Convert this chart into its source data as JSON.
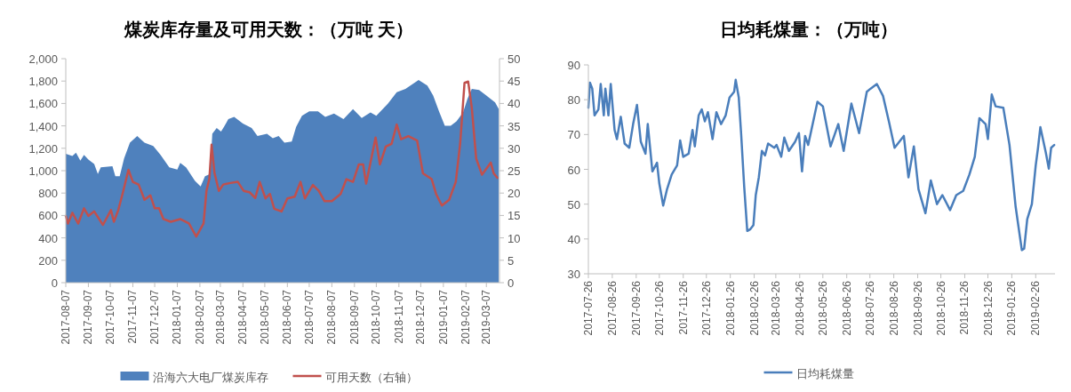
{
  "chart_data": [
    {
      "type": "area",
      "title": "煤炭库存量及可用天数：（万吨 天）",
      "legend": "bottom",
      "xlim": [
        "2017-08-07",
        "2019-03-25"
      ],
      "xticks": [
        "2017-08-07",
        "2017-09-07",
        "2017-10-07",
        "2017-11-07",
        "2017-12-07",
        "2018-01-07",
        "2018-02-07",
        "2018-03-07",
        "2018-04-07",
        "2018-05-07",
        "2018-06-07",
        "2018-07-07",
        "2018-08-07",
        "2018-09-07",
        "2018-10-07",
        "2018-11-07",
        "2018-12-07",
        "2019-01-07",
        "2019-02-07",
        "2019-03-07"
      ],
      "ylim": [
        0,
        2000
      ],
      "yticks": [
        0,
        200,
        400,
        600,
        800,
        {
          "value": 1000,
          "label": "1,000"
        },
        {
          "value": 1200,
          "label": "1,200"
        },
        {
          "value": 1400,
          "label": "1,400"
        },
        {
          "value": 1600,
          "label": "1,600"
        },
        {
          "value": 1800,
          "label": "1,800"
        },
        {
          "value": 2000,
          "label": "2,000"
        }
      ],
      "y2lim": [
        0,
        50
      ],
      "y2ticks": [
        0,
        5,
        10,
        15,
        20,
        25,
        30,
        35,
        40,
        45,
        50
      ],
      "series": [
        {
          "name": "沿海六大电厂煤炭库存",
          "color": "#4f81bd",
          "x": [
            "2017-08-07",
            "2017-08-16",
            "2017-08-21",
            "2017-08-27",
            "2017-09-01",
            "2017-09-07",
            "2017-09-15",
            "2017-09-20",
            "2017-09-24",
            "2017-10-10",
            "2017-10-14",
            "2017-10-20",
            "2017-10-26",
            "2017-11-03",
            "2017-11-13",
            "2017-11-23",
            "2017-12-05",
            "2017-12-15",
            "2017-12-27",
            "2018-01-07",
            "2018-01-11",
            "2018-01-19",
            "2018-01-31",
            "2018-02-08",
            "2018-02-14",
            "2018-02-21",
            "2018-02-24",
            "2018-03-02",
            "2018-03-08",
            "2018-03-12",
            "2018-03-18",
            "2018-03-26",
            "2018-04-07",
            "2018-04-19",
            "2018-04-27",
            "2018-05-10",
            "2018-05-18",
            "2018-05-26",
            "2018-06-03",
            "2018-06-13",
            "2018-06-19",
            "2018-06-27",
            "2018-07-07",
            "2018-07-19",
            "2018-07-29",
            "2018-08-10",
            "2018-08-23",
            "2018-09-05",
            "2018-09-17",
            "2018-09-29",
            "2018-10-07",
            "2018-10-23",
            "2018-11-04",
            "2018-11-16",
            "2018-12-04",
            "2018-12-16",
            "2018-12-24",
            "2019-01-01",
            "2019-01-09",
            "2019-01-17",
            "2019-01-25",
            "2019-02-03",
            "2019-02-09",
            "2019-02-15",
            "2019-02-25",
            "2019-03-07",
            "2019-03-19",
            "2019-03-24"
          ],
          "values": [
            1150,
            1130,
            1160,
            1090,
            1140,
            1100,
            1060,
            970,
            1030,
            1040,
            950,
            950,
            1110,
            1250,
            1310,
            1250,
            1220,
            1140,
            1030,
            1010,
            1070,
            1030,
            910,
            860,
            950,
            970,
            1330,
            1380,
            1350,
            1390,
            1460,
            1480,
            1420,
            1380,
            1310,
            1330,
            1290,
            1310,
            1250,
            1260,
            1390,
            1490,
            1530,
            1530,
            1480,
            1510,
            1460,
            1550,
            1470,
            1520,
            1490,
            1600,
            1700,
            1730,
            1810,
            1760,
            1670,
            1530,
            1400,
            1400,
            1440,
            1520,
            1640,
            1730,
            1720,
            1670,
            1610,
            1550
          ]
        },
        {
          "name": "可用天数（右轴）",
          "type": "line",
          "axis": "y2",
          "color": "#c0504d",
          "x": [
            "2017-08-07",
            "2017-08-10",
            "2017-08-16",
            "2017-08-24",
            "2017-09-01",
            "2017-09-07",
            "2017-09-15",
            "2017-09-27",
            "2017-10-08",
            "2017-10-12",
            "2017-10-18",
            "2017-10-24",
            "2017-11-01",
            "2017-11-07",
            "2017-11-15",
            "2017-11-23",
            "2017-12-01",
            "2017-12-07",
            "2017-12-13",
            "2017-12-19",
            "2017-12-29",
            "2018-01-11",
            "2018-01-23",
            "2018-02-02",
            "2018-02-12",
            "2018-02-16",
            "2018-02-20",
            "2018-02-23",
            "2018-02-27",
            "2018-03-05",
            "2018-03-11",
            "2018-03-19",
            "2018-03-31",
            "2018-04-08",
            "2018-04-16",
            "2018-04-24",
            "2018-04-30",
            "2018-05-08",
            "2018-05-14",
            "2018-05-20",
            "2018-05-30",
            "2018-06-07",
            "2018-06-17",
            "2018-06-25",
            "2018-07-01",
            "2018-07-12",
            "2018-07-20",
            "2018-07-28",
            "2018-08-07",
            "2018-08-19",
            "2018-08-27",
            "2018-09-05",
            "2018-09-13",
            "2018-09-19",
            "2018-09-23",
            "2018-09-29",
            "2018-10-06",
            "2018-10-12",
            "2018-10-20",
            "2018-10-28",
            "2018-11-04",
            "2018-11-10",
            "2018-11-20",
            "2018-12-02",
            "2018-12-10",
            "2018-12-22",
            "2018-12-28",
            "2019-01-05",
            "2019-01-15",
            "2019-01-24",
            "2019-01-30",
            "2019-02-05",
            "2019-02-10",
            "2019-02-15",
            "2019-02-21",
            "2019-03-01",
            "2019-03-13",
            "2019-03-17",
            "2019-03-22"
          ],
          "values": [
            14.9,
            13.2,
            15.6,
            13.2,
            16.6,
            14.9,
            15.9,
            12.9,
            16.2,
            13.6,
            16.2,
            19.9,
            25.2,
            22.5,
            21.9,
            18.5,
            19.5,
            16.6,
            16.6,
            14.2,
            13.6,
            14.2,
            13.2,
            10.3,
            13.2,
            20.5,
            23.2,
            30.8,
            24.5,
            20.5,
            21.9,
            22.2,
            22.5,
            20.5,
            20.2,
            18.9,
            22.5,
            18.8,
            19.8,
            16.5,
            15.9,
            18.8,
            19.2,
            22.5,
            18.8,
            21.8,
            20.5,
            18.2,
            18.2,
            19.8,
            23.1,
            22.5,
            26.4,
            26.4,
            22.1,
            26.8,
            32.4,
            26.4,
            30.4,
            31.0,
            35.3,
            32.0,
            32.7,
            31.7,
            24.4,
            23.1,
            19.8,
            17.2,
            18.5,
            22.5,
            31.0,
            44.6,
            44.9,
            39.0,
            27.7,
            24.1,
            26.8,
            24.4,
            23.4
          ]
        }
      ]
    },
    {
      "type": "line",
      "title": "日均耗煤量：（万吨）",
      "legend": "bottom",
      "xlim": [
        "2017-07-26",
        "2019-03-23"
      ],
      "xticks": [
        "2017-07-26",
        "2017-08-26",
        "2017-09-26",
        "2017-10-26",
        "2017-11-26",
        "2017-12-26",
        "2018-01-26",
        "2018-02-26",
        "2018-03-26",
        "2018-04-26",
        "2018-05-26",
        "2018-06-26",
        "2018-07-26",
        "2018-08-26",
        "2018-09-26",
        "2018-10-26",
        "2018-11-26",
        "2018-12-26",
        "2019-01-26",
        "2019-02-26"
      ],
      "ylim": [
        30,
        90
      ],
      "yticks": [
        30,
        40,
        50,
        60,
        70,
        80,
        90
      ],
      "series": [
        {
          "name": "日均耗煤量",
          "color": "#4a7ebb",
          "x": [
            "2017-07-26",
            "2017-07-28",
            "2017-07-31",
            "2017-08-03",
            "2017-08-08",
            "2017-08-11",
            "2017-08-15",
            "2017-08-17",
            "2017-08-21",
            "2017-08-24",
            "2017-08-29",
            "2017-09-01",
            "2017-09-06",
            "2017-09-11",
            "2017-09-17",
            "2017-09-22",
            "2017-09-27",
            "2017-10-02",
            "2017-10-08",
            "2017-10-11",
            "2017-10-17",
            "2017-10-23",
            "2017-10-26",
            "2017-10-31",
            "2017-11-05",
            "2017-11-11",
            "2017-11-18",
            "2017-11-22",
            "2017-11-26",
            "2017-12-03",
            "2017-12-08",
            "2017-12-11",
            "2017-12-16",
            "2017-12-20",
            "2017-12-24",
            "2017-12-28",
            "2018-01-03",
            "2018-01-08",
            "2018-01-14",
            "2018-01-20",
            "2018-01-25",
            "2018-01-31",
            "2018-02-02",
            "2018-02-06",
            "2018-02-09",
            "2018-02-13",
            "2018-02-17",
            "2018-02-21",
            "2018-02-25",
            "2018-02-28",
            "2018-03-04",
            "2018-03-08",
            "2018-03-12",
            "2018-03-16",
            "2018-03-24",
            "2018-03-27",
            "2018-04-02",
            "2018-04-06",
            "2018-04-12",
            "2018-04-20",
            "2018-04-25",
            "2018-04-29",
            "2018-05-03",
            "2018-05-07",
            "2018-05-19",
            "2018-05-26",
            "2018-06-05",
            "2018-06-15",
            "2018-06-22",
            "2018-07-02",
            "2018-07-12",
            "2018-07-22",
            "2018-07-27",
            "2018-08-04",
            "2018-08-12",
            "2018-08-20",
            "2018-08-27",
            "2018-09-08",
            "2018-09-14",
            "2018-09-21",
            "2018-09-27",
            "2018-10-06",
            "2018-10-13",
            "2018-10-21",
            "2018-10-28",
            "2018-11-07",
            "2018-11-15",
            "2018-11-24",
            "2018-12-02",
            "2018-12-09",
            "2018-12-15",
            "2018-12-23",
            "2018-12-26",
            "2018-12-31",
            "2019-01-05",
            "2019-01-15",
            "2019-01-23",
            "2019-01-31",
            "2019-02-08",
            "2019-02-11",
            "2019-02-15",
            "2019-02-21",
            "2019-02-26",
            "2019-03-01",
            "2019-03-04",
            "2019-03-11",
            "2019-03-15",
            "2019-03-18",
            "2019-03-22"
          ],
          "values": [
            77.7,
            84.9,
            83.2,
            75.5,
            77.2,
            84.5,
            75.5,
            83.2,
            75.5,
            84.5,
            71.3,
            68.7,
            75.1,
            67.4,
            66.2,
            73.0,
            78.5,
            67.9,
            64.5,
            73.0,
            59.4,
            61.9,
            55.9,
            49.6,
            54.3,
            58.5,
            61.1,
            68.3,
            63.6,
            64.5,
            71.3,
            66.6,
            75.5,
            77.2,
            73.8,
            76.4,
            68.7,
            76.4,
            73.0,
            75.5,
            80.6,
            82.3,
            85.7,
            80.6,
            70.4,
            55.1,
            42.3,
            42.8,
            44.0,
            52.6,
            57.7,
            65.3,
            64.0,
            67.4,
            66.2,
            67.0,
            63.6,
            69.1,
            65.3,
            67.9,
            70.4,
            59.4,
            69.6,
            67.0,
            79.4,
            78.1,
            66.6,
            73.0,
            65.3,
            78.9,
            70.4,
            82.3,
            83.2,
            84.5,
            81.1,
            73.4,
            66.2,
            69.6,
            57.7,
            66.6,
            54.3,
            47.4,
            56.8,
            50.0,
            52.6,
            48.3,
            52.6,
            53.8,
            58.5,
            63.6,
            74.7,
            73.0,
            68.7,
            81.5,
            78.1,
            77.7,
            67.0,
            49.2,
            36.8,
            37.2,
            45.7,
            50.0,
            61.1,
            66.2,
            72.1,
            64.9,
            60.2,
            66.2,
            67.0
          ]
        }
      ]
    }
  ]
}
